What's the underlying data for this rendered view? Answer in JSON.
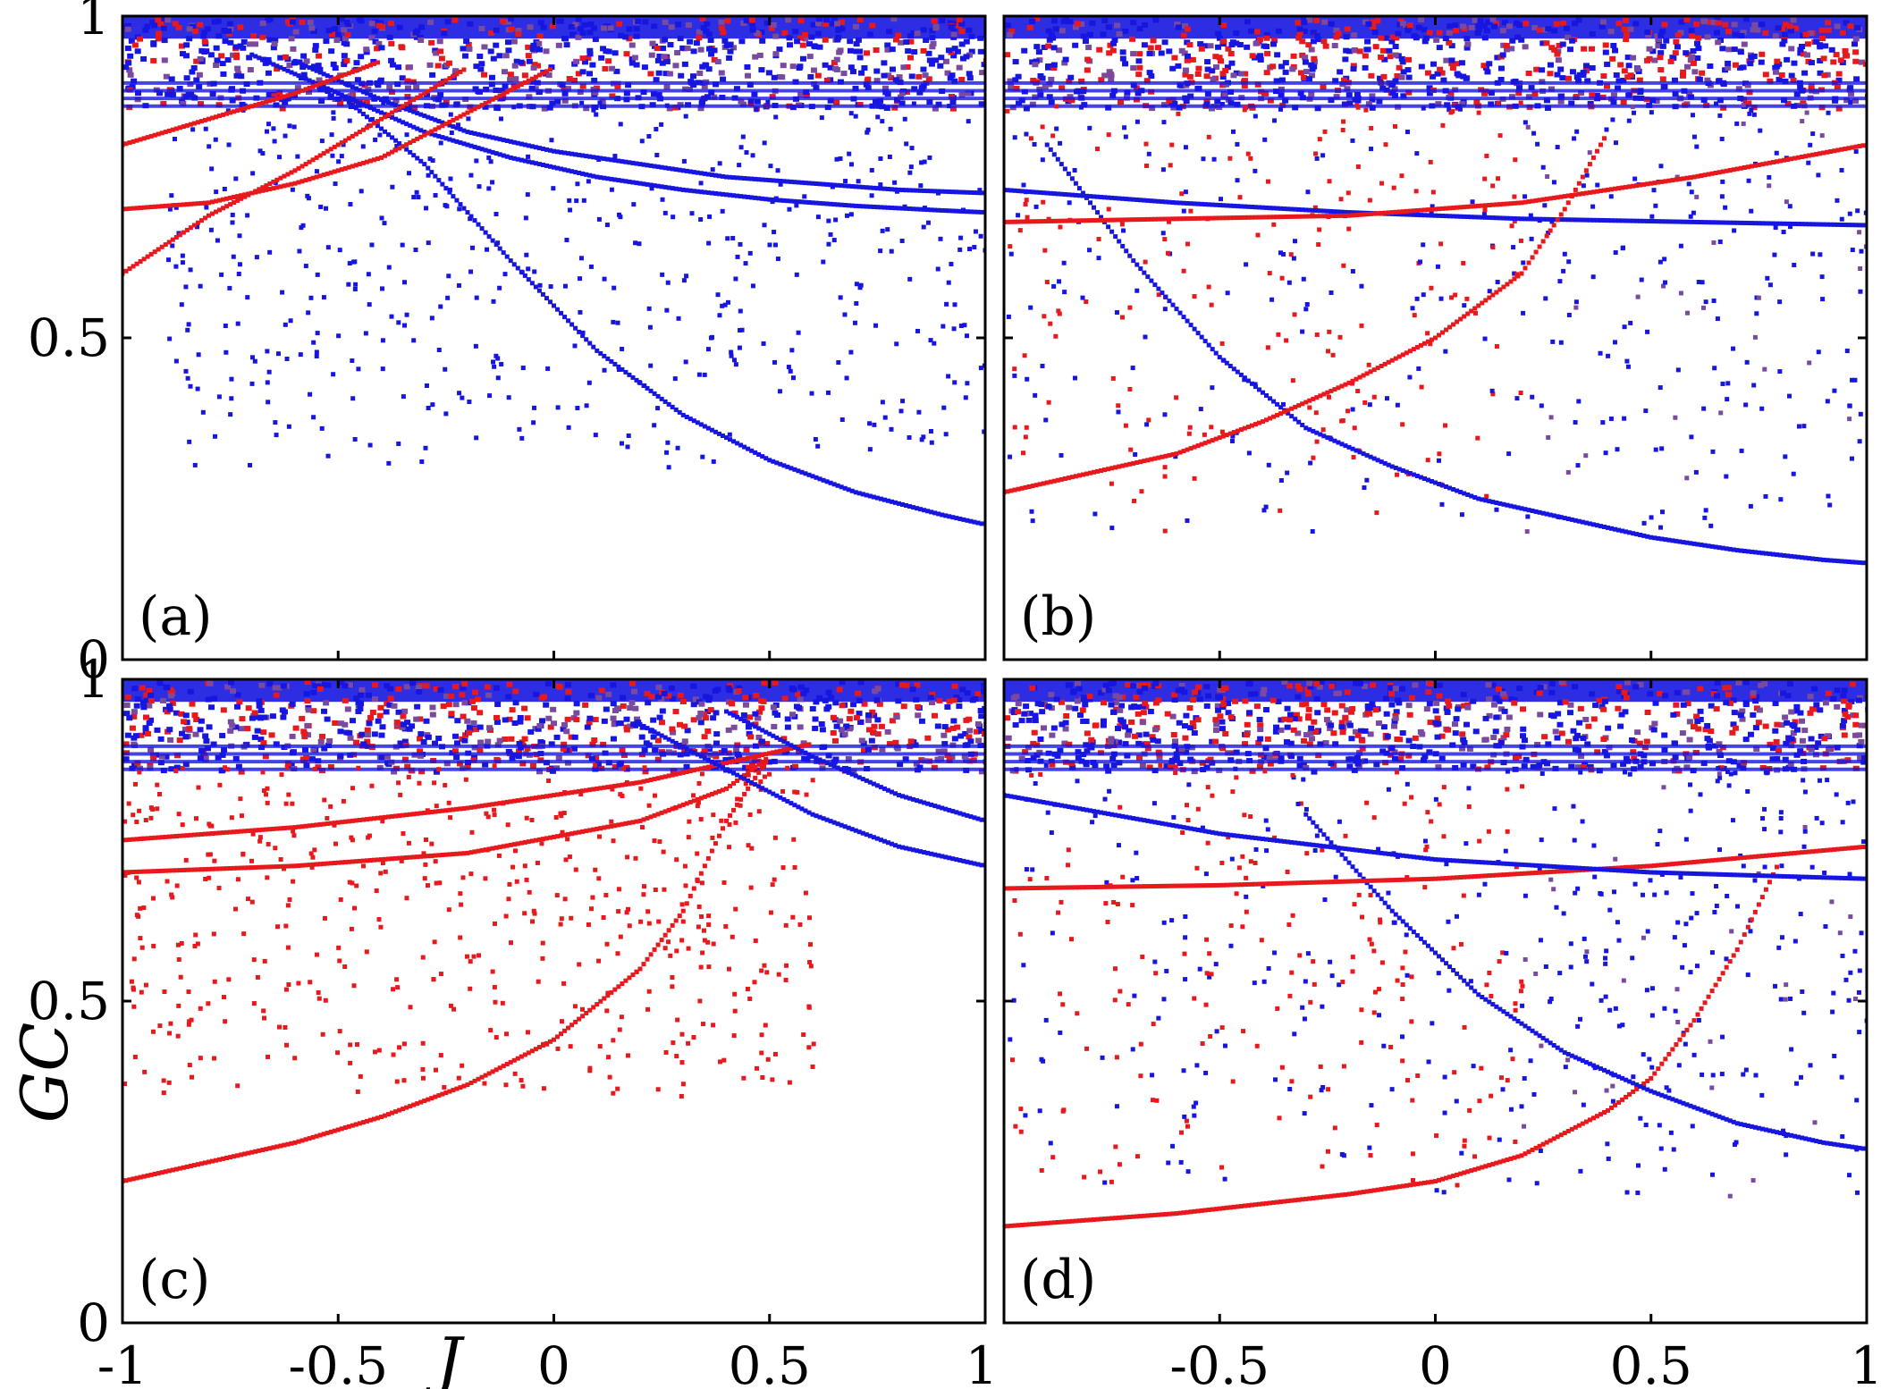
{
  "figure": {
    "xlabel": "J",
    "ylabel": "GC",
    "colors": {
      "series_a": "#e8191c",
      "series_b": "#1616e0",
      "mixed": "#7a4a9e",
      "axis": "#000000"
    }
  },
  "chart_data": [
    {
      "type": "scatter",
      "panel": "(a)",
      "xlim": [
        -1,
        1
      ],
      "ylim": [
        0,
        1
      ],
      "xticks": [
        "-1",
        "-0.5",
        "0",
        "0.5",
        "1"
      ],
      "yticks": [
        "0",
        "0.5",
        "1"
      ],
      "curves": [
        {
          "color": "blue",
          "x": [
            -0.5,
            -0.3,
            -0.1,
            0.1,
            0.3,
            0.5,
            0.7,
            0.9,
            1.0
          ],
          "y": [
            0.88,
            0.77,
            0.62,
            0.48,
            0.38,
            0.31,
            0.26,
            0.225,
            0.21
          ]
        },
        {
          "color": "blue",
          "x": [
            -0.7,
            -0.5,
            -0.3,
            -0.1,
            0.1,
            0.3,
            0.5,
            0.7,
            0.9,
            1.0
          ],
          "y": [
            0.94,
            0.88,
            0.82,
            0.78,
            0.75,
            0.73,
            0.715,
            0.705,
            0.698,
            0.695
          ]
        },
        {
          "color": "blue",
          "x": [
            -0.6,
            -0.4,
            -0.2,
            0.0,
            0.2,
            0.4,
            0.6,
            0.8,
            1.0
          ],
          "y": [
            0.93,
            0.87,
            0.82,
            0.79,
            0.77,
            0.75,
            0.74,
            0.73,
            0.725
          ]
        },
        {
          "color": "red",
          "x": [
            -1.0,
            -0.8,
            -0.6,
            -0.5,
            -0.4,
            -0.3,
            -0.2
          ],
          "y": [
            0.6,
            0.69,
            0.76,
            0.8,
            0.84,
            0.88,
            0.92
          ]
        },
        {
          "color": "red",
          "x": [
            -1.0,
            -0.8,
            -0.6,
            -0.4,
            -0.2,
            0.0
          ],
          "y": [
            0.7,
            0.71,
            0.74,
            0.78,
            0.85,
            0.92
          ]
        },
        {
          "color": "red",
          "x": [
            -1.0,
            -0.8,
            -0.6,
            -0.4
          ],
          "y": [
            0.8,
            0.84,
            0.88,
            0.93
          ]
        }
      ],
      "scatter": {
        "color": "blue",
        "x_range": [
          -0.9,
          1.0
        ],
        "y_range": [
          0.3,
          0.87
        ],
        "count": 520
      },
      "top_band": {
        "y_range": [
          0.86,
          1.0
        ],
        "red_fraction": 0.18
      }
    },
    {
      "type": "scatter",
      "panel": "(b)",
      "xlim": [
        -1,
        1
      ],
      "ylim": [
        0,
        1
      ],
      "xticks": [
        "-1",
        "-0.5",
        "0",
        "0.5",
        "1"
      ],
      "yticks": [
        "0",
        "0.5",
        "1"
      ],
      "curves": [
        {
          "color": "blue",
          "x": [
            -0.9,
            -0.7,
            -0.5,
            -0.3,
            -0.1,
            0.1,
            0.3,
            0.5,
            0.7,
            0.9,
            1.0
          ],
          "y": [
            0.8,
            0.62,
            0.47,
            0.36,
            0.3,
            0.25,
            0.22,
            0.19,
            0.17,
            0.155,
            0.15
          ]
        },
        {
          "color": "blue",
          "x": [
            -1.0,
            -0.6,
            -0.2,
            0.2,
            0.6,
            1.0
          ],
          "y": [
            0.73,
            0.71,
            0.695,
            0.685,
            0.68,
            0.675
          ]
        },
        {
          "color": "red",
          "x": [
            -1.0,
            -0.8,
            -0.6,
            -0.4,
            -0.2,
            0.0,
            0.2,
            0.3,
            0.4
          ],
          "y": [
            0.26,
            0.29,
            0.32,
            0.37,
            0.43,
            0.5,
            0.6,
            0.7,
            0.82
          ]
        },
        {
          "color": "red",
          "x": [
            -1.0,
            -0.6,
            -0.2,
            0.2,
            0.6,
            1.0
          ],
          "y": [
            0.68,
            0.685,
            0.69,
            0.71,
            0.75,
            0.8
          ]
        }
      ],
      "scatter": {
        "color": "mixed",
        "x_range": [
          -1.0,
          1.0
        ],
        "y_range": [
          0.2,
          0.87
        ],
        "count": 560
      },
      "top_band": {
        "y_range": [
          0.86,
          1.0
        ],
        "red_fraction": 0.3
      }
    },
    {
      "type": "scatter",
      "panel": "(c)",
      "xlim": [
        -1,
        1
      ],
      "ylim": [
        0,
        1
      ],
      "xticks": [
        "-1",
        "-0.5",
        "0",
        "0.5",
        "1"
      ],
      "yticks": [
        "0",
        "0.5",
        "1"
      ],
      "curves": [
        {
          "color": "red",
          "x": [
            -1.0,
            -0.8,
            -0.6,
            -0.4,
            -0.2,
            0.0,
            0.2,
            0.3,
            0.4,
            0.5
          ],
          "y": [
            0.22,
            0.25,
            0.28,
            0.32,
            0.37,
            0.44,
            0.55,
            0.64,
            0.78,
            0.88
          ]
        },
        {
          "color": "red",
          "x": [
            -1.0,
            -0.6,
            -0.2,
            0.2,
            0.4,
            0.5
          ],
          "y": [
            0.7,
            0.71,
            0.73,
            0.78,
            0.83,
            0.88
          ]
        },
        {
          "color": "red",
          "x": [
            -1.0,
            -0.6,
            -0.2,
            0.2,
            0.4,
            0.6
          ],
          "y": [
            0.75,
            0.77,
            0.8,
            0.84,
            0.87,
            0.9
          ]
        },
        {
          "color": "blue",
          "x": [
            0.2,
            0.4,
            0.6,
            0.8,
            1.0
          ],
          "y": [
            0.93,
            0.86,
            0.79,
            0.74,
            0.71
          ]
        },
        {
          "color": "blue",
          "x": [
            0.4,
            0.6,
            0.8,
            1.0
          ],
          "y": [
            0.95,
            0.88,
            0.82,
            0.78
          ]
        }
      ],
      "scatter": {
        "color": "red",
        "x_range": [
          -1.0,
          0.6
        ],
        "y_range": [
          0.35,
          0.87
        ],
        "count": 520
      },
      "top_band": {
        "y_range": [
          0.86,
          1.0
        ],
        "red_fraction": 0.35
      }
    },
    {
      "type": "scatter",
      "panel": "(d)",
      "xlim": [
        -1,
        1
      ],
      "ylim": [
        0,
        1
      ],
      "xticks": [
        "-1",
        "-0.5",
        "0",
        "0.5",
        "1"
      ],
      "yticks": [
        "0",
        "0.5",
        "1"
      ],
      "curves": [
        {
          "color": "red",
          "x": [
            -1.0,
            -0.6,
            -0.2,
            0.0,
            0.2,
            0.4,
            0.5,
            0.6,
            0.7,
            0.8
          ],
          "y": [
            0.15,
            0.17,
            0.2,
            0.22,
            0.26,
            0.33,
            0.38,
            0.47,
            0.58,
            0.72
          ]
        },
        {
          "color": "blue",
          "x": [
            -0.3,
            -0.1,
            0.1,
            0.3,
            0.5,
            0.7,
            0.9,
            1.0
          ],
          "y": [
            0.79,
            0.64,
            0.51,
            0.42,
            0.36,
            0.31,
            0.28,
            0.27
          ]
        },
        {
          "color": "red",
          "x": [
            -1.0,
            -0.5,
            0.0,
            0.5,
            1.0
          ],
          "y": [
            0.675,
            0.68,
            0.69,
            0.71,
            0.74
          ]
        },
        {
          "color": "blue",
          "x": [
            -1.0,
            -0.5,
            0.0,
            0.5,
            1.0
          ],
          "y": [
            0.82,
            0.76,
            0.72,
            0.7,
            0.69
          ]
        }
      ],
      "scatter": {
        "color": "mixed",
        "x_range": [
          -1.0,
          1.0
        ],
        "y_range": [
          0.2,
          0.87
        ],
        "count": 600
      },
      "top_band": {
        "y_range": [
          0.86,
          1.0
        ],
        "red_fraction": 0.3
      }
    }
  ]
}
